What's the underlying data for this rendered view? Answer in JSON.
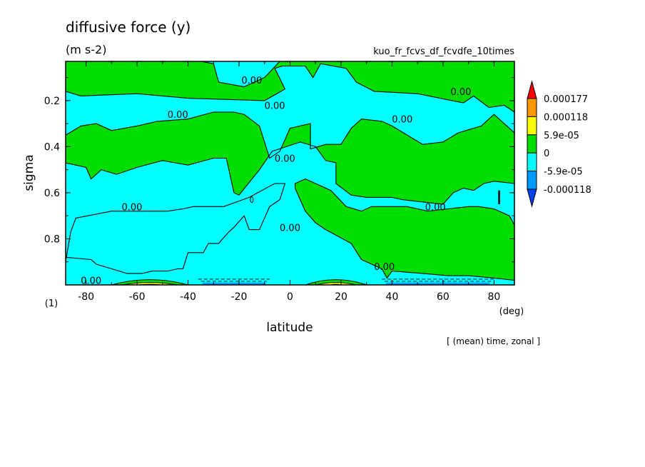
{
  "chart_data": {
    "type": "heatmap",
    "title": "diffusive force (y)",
    "units": "(m s-2)",
    "dataset": "kuo_fr_fcvs_df_fcvdfe_10times",
    "xlabel": "latitude",
    "x_unit": "(deg)",
    "ylabel": "sigma",
    "y_unit": "(1)",
    "footer": "[ (mean) time, zonal ]",
    "xlim": [
      -88,
      88
    ],
    "ylim": [
      1.0,
      0.03
    ],
    "x_ticks": [
      -80,
      -60,
      -40,
      -20,
      0,
      20,
      40,
      60,
      80
    ],
    "x_tick_labels": [
      "-80",
      "-60",
      "-40",
      "-20",
      "0",
      "20",
      "40",
      "60",
      "80"
    ],
    "y_ticks": [
      0.2,
      0.4,
      0.6,
      0.8
    ],
    "y_tick_labels": [
      "0.2",
      "0.4",
      "0.6",
      "0.8"
    ],
    "contour_level_label": "0.00",
    "legend": {
      "levels": [
        "0.000177",
        "0.000118",
        "5.9e-05",
        "0",
        "-5.9e-05",
        "-0.000118"
      ],
      "level_values": [
        0.000177,
        0.000118,
        5.9e-05,
        0,
        -5.9e-05,
        -0.000118
      ],
      "colors": [
        "#ff0000",
        "#ff9900",
        "#ffff00",
        "#00dd00",
        "#00ffff",
        "#0099ff",
        "#0044ee"
      ]
    },
    "regions": [
      {
        "sign": "positive",
        "color": "#00dd00",
        "description": "background"
      },
      {
        "sign": "negative",
        "color": "#00ffff",
        "points": [
          [
            -88,
            0.03
          ],
          [
            -50,
            0.03
          ],
          [
            -40,
            0.02
          ],
          [
            -30,
            0.04
          ],
          [
            -28,
            0.12
          ],
          [
            -18,
            0.14
          ],
          [
            -10,
            0.1
          ],
          [
            -4,
            0.03
          ],
          [
            -88,
            0.03
          ]
        ]
      },
      {
        "sign": "negative",
        "color": "#00ffff",
        "points": [
          [
            -88,
            0.16
          ],
          [
            -82,
            0.18
          ],
          [
            -60,
            0.17
          ],
          [
            -40,
            0.19
          ],
          [
            -10,
            0.2
          ],
          [
            -2,
            0.15
          ],
          [
            -6,
            0.06
          ],
          [
            -3,
            0.05
          ],
          [
            6,
            0.05
          ],
          [
            9,
            0.1
          ],
          [
            12,
            0.04
          ],
          [
            22,
            0.06
          ],
          [
            26,
            0.12
          ],
          [
            33,
            0.16
          ],
          [
            50,
            0.17
          ],
          [
            68,
            0.21
          ],
          [
            72,
            0.18
          ],
          [
            78,
            0.23
          ],
          [
            84,
            0.22
          ],
          [
            88,
            0.25
          ],
          [
            88,
            0.34
          ],
          [
            80,
            0.26
          ],
          [
            75,
            0.31
          ],
          [
            66,
            0.34
          ],
          [
            60,
            0.38
          ],
          [
            52,
            0.39
          ],
          [
            40,
            0.31
          ],
          [
            36,
            0.29
          ],
          [
            28,
            0.28
          ],
          [
            24,
            0.32
          ],
          [
            20,
            0.39
          ],
          [
            14,
            0.39
          ],
          [
            8,
            0.41
          ],
          [
            8,
            0.3
          ],
          [
            0,
            0.32
          ],
          [
            -4,
            0.42
          ],
          [
            -8,
            0.45
          ],
          [
            -12,
            0.31
          ],
          [
            -18,
            0.26
          ],
          [
            -22,
            0.25
          ],
          [
            -30,
            0.25
          ],
          [
            -40,
            0.28
          ],
          [
            -52,
            0.29
          ],
          [
            -60,
            0.31
          ],
          [
            -70,
            0.33
          ],
          [
            -76,
            0.3
          ],
          [
            -82,
            0.31
          ],
          [
            -88,
            0.35
          ],
          [
            -88,
            0.16
          ]
        ]
      },
      {
        "sign": "negative",
        "color": "#00ffff",
        "points": [
          [
            -88,
            0.47
          ],
          [
            -80,
            0.49
          ],
          [
            -78,
            0.54
          ],
          [
            -74,
            0.5
          ],
          [
            -68,
            0.52
          ],
          [
            -60,
            0.49
          ],
          [
            -50,
            0.46
          ],
          [
            -40,
            0.48
          ],
          [
            -30,
            0.45
          ],
          [
            -25,
            0.45
          ],
          [
            -22,
            0.6
          ],
          [
            -20,
            0.61
          ],
          [
            -12,
            0.5
          ],
          [
            -7,
            0.42
          ],
          [
            4,
            0.38
          ],
          [
            10,
            0.4
          ],
          [
            12,
            0.43
          ],
          [
            14,
            0.46
          ],
          [
            18,
            0.47
          ],
          [
            18,
            0.56
          ],
          [
            24,
            0.61
          ],
          [
            30,
            0.62
          ],
          [
            40,
            0.62
          ],
          [
            44,
            0.63
          ],
          [
            52,
            0.64
          ],
          [
            60,
            0.65
          ],
          [
            64,
            0.6
          ],
          [
            68,
            0.58
          ],
          [
            72,
            0.59
          ],
          [
            76,
            0.56
          ],
          [
            80,
            0.55
          ],
          [
            88,
            0.56
          ],
          [
            88,
            0.74
          ],
          [
            86,
            0.7
          ],
          [
            80,
            0.67
          ],
          [
            74,
            0.66
          ],
          [
            70,
            0.66
          ],
          [
            62,
            0.67
          ],
          [
            54,
            0.68
          ],
          [
            46,
            0.66
          ],
          [
            38,
            0.66
          ],
          [
            32,
            0.66
          ],
          [
            28,
            0.68
          ],
          [
            22,
            0.66
          ],
          [
            16,
            0.59
          ],
          [
            12,
            0.57
          ],
          [
            6,
            0.54
          ],
          [
            2,
            0.56
          ],
          [
            2,
            0.58
          ],
          [
            6,
            0.68
          ],
          [
            10,
            0.73
          ],
          [
            14,
            0.76
          ],
          [
            24,
            0.82
          ],
          [
            28,
            0.89
          ],
          [
            36,
            0.93
          ],
          [
            38,
            0.97
          ],
          [
            40,
            0.94
          ],
          [
            52,
            0.95
          ],
          [
            62,
            0.96
          ],
          [
            70,
            0.96
          ],
          [
            80,
            0.97
          ],
          [
            88,
            0.98
          ],
          [
            88,
            1.0
          ],
          [
            -88,
            1.0
          ],
          [
            -88,
            0.9
          ],
          [
            -86,
            0.77
          ],
          [
            -84,
            0.71
          ],
          [
            -70,
            0.68
          ],
          [
            -60,
            0.68
          ],
          [
            -48,
            0.68
          ],
          [
            -42,
            0.67
          ],
          [
            -38,
            0.66
          ],
          [
            -32,
            0.66
          ],
          [
            -26,
            0.66
          ],
          [
            -16,
            0.62
          ],
          [
            -6,
            0.56
          ],
          [
            -2,
            0.56
          ],
          [
            -4,
            0.63
          ],
          [
            -8,
            0.66
          ],
          [
            -12,
            0.76
          ],
          [
            -16,
            0.76
          ],
          [
            -18,
            0.7
          ],
          [
            -22,
            0.75
          ],
          [
            -24,
            0.77
          ],
          [
            -28,
            0.82
          ],
          [
            -32,
            0.82
          ],
          [
            -34,
            0.86
          ],
          [
            -40,
            0.86
          ],
          [
            -42,
            0.93
          ],
          [
            -44,
            0.93
          ],
          [
            -48,
            0.94
          ],
          [
            -54,
            0.94
          ],
          [
            -58,
            0.95
          ],
          [
            -64,
            0.95
          ],
          [
            -70,
            0.93
          ],
          [
            -76,
            0.91
          ],
          [
            -78,
            0.89
          ],
          [
            -88,
            0.88
          ],
          [
            -88,
            0.47
          ]
        ]
      }
    ],
    "contour_labels": [
      {
        "text": "0.00",
        "x": -15,
        "y": 0.11
      },
      {
        "text": "0.00",
        "x": -6,
        "y": 0.22
      },
      {
        "text": "0.00",
        "x": -44,
        "y": 0.26
      },
      {
        "text": "0.00",
        "x": 67,
        "y": 0.16
      },
      {
        "text": "0.00",
        "x": 44,
        "y": 0.28
      },
      {
        "text": "0.00",
        "x": -2,
        "y": 0.45
      },
      {
        "text": "0.00",
        "x": -62,
        "y": 0.66
      },
      {
        "text": "0.00",
        "x": 0,
        "y": 0.75
      },
      {
        "text": "0.00",
        "x": 57,
        "y": 0.66
      },
      {
        "text": "0.00",
        "x": 37,
        "y": 0.92
      },
      {
        "text": "0.00",
        "x": -78,
        "y": 0.98
      }
    ]
  }
}
